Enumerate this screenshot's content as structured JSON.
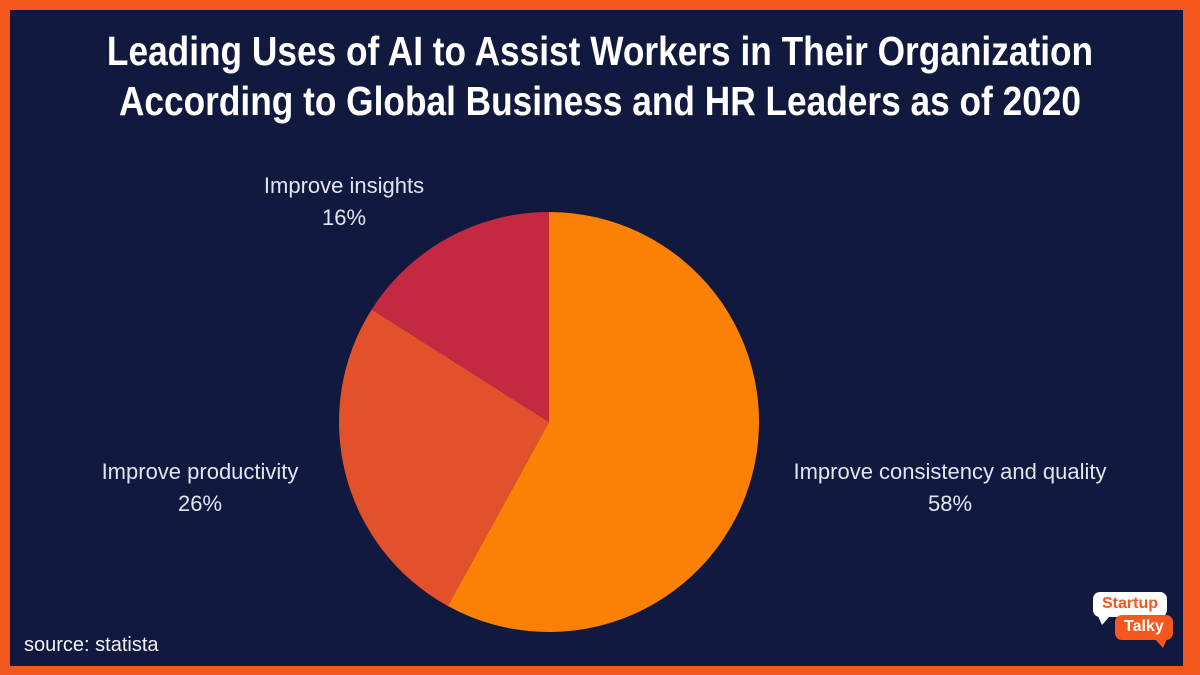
{
  "title": {
    "line1": "Leading Uses of AI to Assist Workers in Their Organization",
    "line2": "According to Global Business and HR Leaders as of 2020"
  },
  "chart_data": {
    "type": "pie",
    "title": "Leading Uses of AI to Assist Workers in Their Organization According to Global Business and HR Leaders as of 2020",
    "unit": "%",
    "direction": "clockwise",
    "start_angle_deg": 0,
    "legend_position": "labels-around-pie",
    "slices": [
      {
        "label": "Improve consistency and quality",
        "value": 58,
        "pct_label": "58%",
        "color": "#FB8104"
      },
      {
        "label": "Improve productivity",
        "value": 26,
        "pct_label": "26%",
        "color": "#E2512B"
      },
      {
        "label": "Improve insights",
        "value": 16,
        "pct_label": "16%",
        "color": "#C32A42"
      }
    ]
  },
  "source": "source: statista",
  "logo": {
    "top_text": "Startup",
    "bottom_text": "Talky"
  },
  "colors": {
    "background": "#111A3E",
    "accent": "#F4581E",
    "title_text": "#FFFFFF",
    "label_text": "#E2E4F2"
  }
}
